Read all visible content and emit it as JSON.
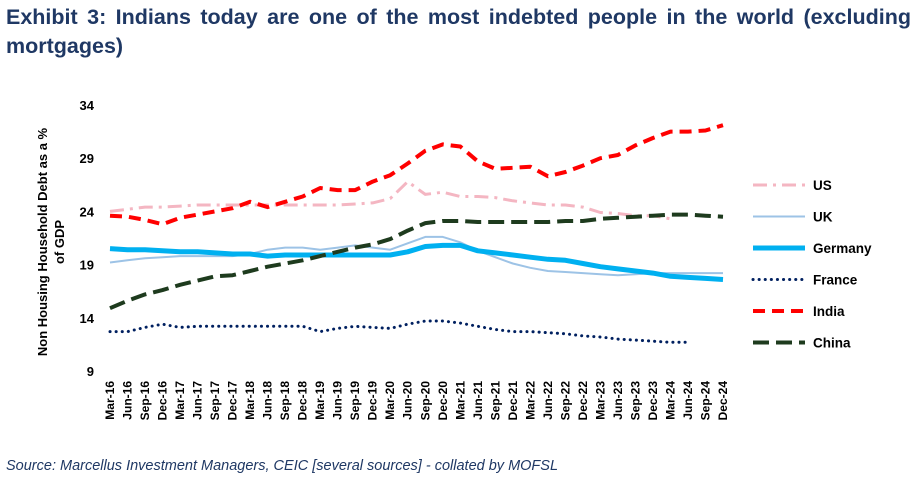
{
  "title": "Exhibit 3: Indians today are one of the most indebted people in the world (excluding mortgages)",
  "source": "Source: Marcellus Investment Managers, CEIC [several sources] - collated by MOFSL",
  "chart_data": {
    "type": "line",
    "ylabel_line1": "Non Housing Household Debt as a %",
    "ylabel_line2": "of GDP",
    "xlabel": "",
    "ylim": [
      9,
      34
    ],
    "yticks": [
      9,
      14,
      19,
      24,
      29,
      34
    ],
    "grid": false,
    "legend_position": "right",
    "categories": [
      "Mar-16",
      "Jun-16",
      "Sep-16",
      "Dec-16",
      "Mar-17",
      "Jun-17",
      "Sep-17",
      "Dec-17",
      "Mar-18",
      "Jun-18",
      "Sep-18",
      "Dec-18",
      "Mar-19",
      "Jun-19",
      "Sep-19",
      "Dec-19",
      "Mar-20",
      "Jun-20",
      "Sep-20",
      "Dec-20",
      "Mar-21",
      "Jun-21",
      "Sep-21",
      "Dec-21",
      "Mar-22",
      "Jun-22",
      "Sep-22",
      "Dec-22",
      "Mar-23",
      "Jun-23",
      "Sep-23",
      "Dec-23",
      "Mar-24",
      "Jun-24",
      "Sep-24",
      "Dec-24"
    ],
    "series": [
      {
        "name": "US",
        "color": "#f4b6c2",
        "dash": "dashdot",
        "width": 3,
        "values": [
          24.0,
          24.2,
          24.4,
          24.4,
          24.5,
          24.6,
          24.6,
          24.6,
          24.6,
          24.6,
          24.6,
          24.6,
          24.6,
          24.6,
          24.7,
          24.8,
          25.2,
          26.8,
          25.6,
          25.8,
          25.4,
          25.4,
          25.3,
          25.0,
          24.8,
          24.6,
          24.6,
          24.4,
          23.9,
          23.8,
          23.6,
          23.6,
          23.3,
          null,
          null,
          null
        ]
      },
      {
        "name": "UK",
        "color": "#9dc3e6",
        "dash": "solid",
        "width": 2,
        "values": [
          19.2,
          19.4,
          19.6,
          19.7,
          19.8,
          19.8,
          19.8,
          19.8,
          20.0,
          20.4,
          20.6,
          20.6,
          20.4,
          20.6,
          20.8,
          20.6,
          20.4,
          21.0,
          21.6,
          21.6,
          21.1,
          20.3,
          19.7,
          19.1,
          18.7,
          18.4,
          18.3,
          18.2,
          18.1,
          18.0,
          18.1,
          18.2,
          18.2,
          18.2,
          18.2,
          18.2
        ]
      },
      {
        "name": "Germany",
        "color": "#00b0f0",
        "dash": "solid",
        "width": 5,
        "values": [
          20.5,
          20.4,
          20.4,
          20.3,
          20.2,
          20.2,
          20.1,
          20.0,
          20.0,
          19.8,
          19.9,
          19.9,
          19.9,
          19.9,
          19.9,
          19.9,
          19.9,
          20.2,
          20.7,
          20.8,
          20.8,
          20.3,
          20.1,
          19.9,
          19.7,
          19.5,
          19.4,
          19.1,
          18.8,
          18.6,
          18.4,
          18.2,
          17.9,
          17.8,
          17.7,
          17.6
        ]
      },
      {
        "name": "France",
        "color": "#002060",
        "dash": "dotted",
        "width": 3,
        "values": [
          12.7,
          12.7,
          13.1,
          13.4,
          13.1,
          13.2,
          13.2,
          13.2,
          13.2,
          13.2,
          13.2,
          13.2,
          12.7,
          13.0,
          13.2,
          13.1,
          13.0,
          13.4,
          13.7,
          13.7,
          13.5,
          13.2,
          12.9,
          12.7,
          12.7,
          12.6,
          12.5,
          12.3,
          12.2,
          12.0,
          11.9,
          11.8,
          11.7,
          11.7,
          null,
          null
        ]
      },
      {
        "name": "India",
        "color": "#ff0000",
        "dash": "dashed",
        "width": 4,
        "values": [
          23.6,
          23.5,
          23.2,
          22.8,
          23.4,
          23.7,
          24.0,
          24.3,
          24.9,
          24.4,
          24.9,
          25.4,
          26.2,
          26.0,
          26.0,
          26.8,
          27.4,
          28.5,
          29.7,
          30.3,
          30.1,
          28.7,
          28.0,
          28.1,
          28.2,
          27.3,
          27.7,
          28.3,
          29.0,
          29.3,
          30.2,
          30.9,
          31.5,
          31.5,
          31.6,
          32.1
        ]
      },
      {
        "name": "China",
        "color": "#1e3b1e",
        "dash": "dashed",
        "width": 4,
        "values": [
          14.9,
          15.6,
          16.2,
          16.6,
          17.1,
          17.5,
          17.9,
          18.0,
          18.4,
          18.8,
          19.1,
          19.4,
          19.8,
          20.2,
          20.6,
          20.9,
          21.4,
          22.2,
          22.9,
          23.1,
          23.1,
          23.0,
          23.0,
          23.0,
          23.0,
          23.0,
          23.1,
          23.1,
          23.3,
          23.4,
          23.5,
          23.6,
          23.7,
          23.7,
          23.6,
          23.5
        ]
      }
    ]
  }
}
